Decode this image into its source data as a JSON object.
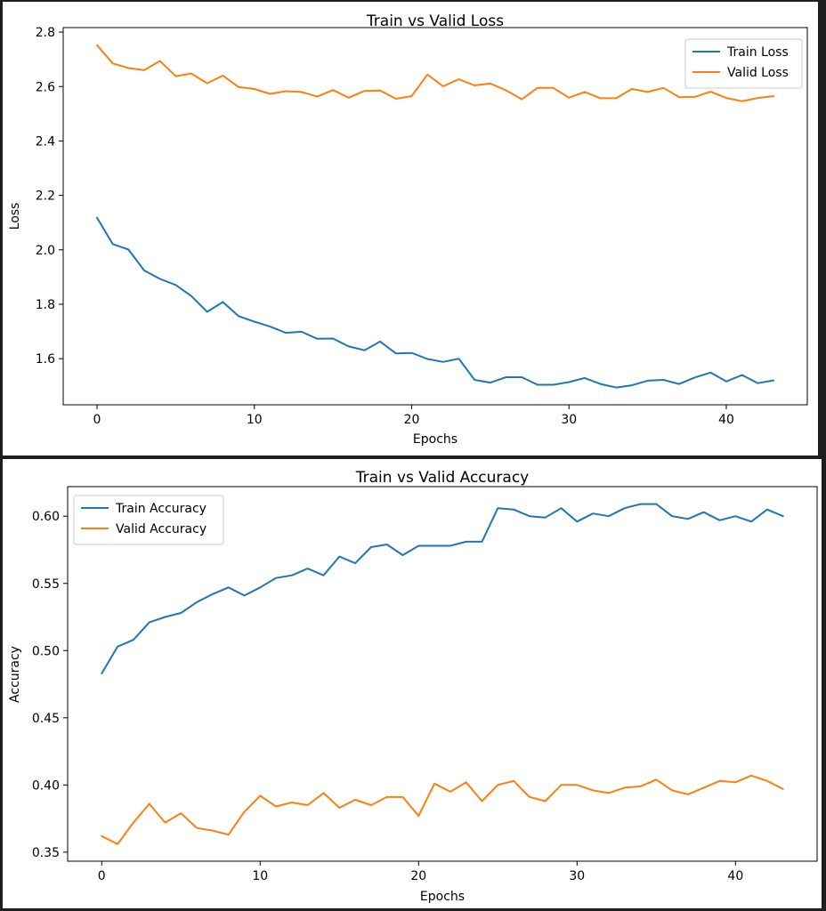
{
  "chart_data": [
    {
      "type": "line",
      "title": "Train vs Valid Loss",
      "xlabel": "Epochs",
      "ylabel": "Loss",
      "xlim": [
        -2.15,
        45.15
      ],
      "ylim": [
        1.4305,
        2.8166
      ],
      "xticks": [
        0,
        10,
        20,
        30,
        40
      ],
      "yticks": [
        1.6,
        1.8,
        2.0,
        2.2,
        2.4,
        2.6,
        2.8
      ],
      "xtick_labels": [
        "0",
        "10",
        "20",
        "30",
        "40"
      ],
      "ytick_labels": [
        "1.6",
        "1.8",
        "2.0",
        "2.2",
        "2.4",
        "2.6",
        "2.8"
      ],
      "grid": false,
      "legend_position": "top-right",
      "x": [
        0,
        1,
        2,
        3,
        4,
        5,
        6,
        7,
        8,
        9,
        10,
        11,
        12,
        13,
        14,
        15,
        16,
        17,
        18,
        19,
        20,
        21,
        22,
        23,
        24,
        25,
        26,
        27,
        28,
        29,
        30,
        31,
        32,
        33,
        34,
        35,
        36,
        37,
        38,
        39,
        40,
        41,
        42,
        43
      ],
      "series": [
        {
          "name": "Train Loss",
          "color": "#1f77b4",
          "values": [
            2.118,
            2.021,
            2.001,
            1.924,
            1.893,
            1.871,
            1.83,
            1.772,
            1.808,
            1.756,
            1.736,
            1.718,
            1.695,
            1.699,
            1.673,
            1.674,
            1.645,
            1.631,
            1.663,
            1.619,
            1.621,
            1.599,
            1.588,
            1.6,
            1.522,
            1.512,
            1.532,
            1.532,
            1.504,
            1.504,
            1.514,
            1.529,
            1.507,
            1.494,
            1.502,
            1.519,
            1.522,
            1.507,
            1.531,
            1.549,
            1.516,
            1.54,
            1.51,
            1.52
          ]
        },
        {
          "name": "Valid Loss",
          "color": "#ff7f0e",
          "values": [
            2.752,
            2.685,
            2.668,
            2.66,
            2.694,
            2.638,
            2.648,
            2.612,
            2.64,
            2.598,
            2.591,
            2.573,
            2.583,
            2.58,
            2.563,
            2.587,
            2.559,
            2.584,
            2.585,
            2.555,
            2.565,
            2.644,
            2.601,
            2.627,
            2.604,
            2.611,
            2.586,
            2.553,
            2.595,
            2.595,
            2.559,
            2.58,
            2.557,
            2.557,
            2.591,
            2.58,
            2.595,
            2.561,
            2.562,
            2.581,
            2.558,
            2.546,
            2.558,
            2.565
          ]
        }
      ]
    },
    {
      "type": "line",
      "title": "Train vs Valid Accuracy",
      "xlabel": "Epochs",
      "ylabel": "Accuracy",
      "xlim": [
        -2.15,
        45.15
      ],
      "ylim": [
        0.3433,
        0.622
      ],
      "xticks": [
        0,
        10,
        20,
        30,
        40
      ],
      "yticks": [
        0.35,
        0.4,
        0.45,
        0.5,
        0.55,
        0.6
      ],
      "xtick_labels": [
        "0",
        "10",
        "20",
        "30",
        "40"
      ],
      "ytick_labels": [
        "0.35",
        "0.40",
        "0.45",
        "0.50",
        "0.55",
        "0.60"
      ],
      "grid": false,
      "legend_position": "top-left",
      "x": [
        0,
        1,
        2,
        3,
        4,
        5,
        6,
        7,
        8,
        9,
        10,
        11,
        12,
        13,
        14,
        15,
        16,
        17,
        18,
        19,
        20,
        21,
        22,
        23,
        24,
        25,
        26,
        27,
        28,
        29,
        30,
        31,
        32,
        33,
        34,
        35,
        36,
        37,
        38,
        39,
        40,
        41,
        42,
        43
      ],
      "series": [
        {
          "name": "Train Accuracy",
          "color": "#1f77b4",
          "values": [
            0.483,
            0.503,
            0.508,
            0.521,
            0.525,
            0.528,
            0.536,
            0.542,
            0.547,
            0.541,
            0.547,
            0.554,
            0.556,
            0.561,
            0.556,
            0.57,
            0.565,
            0.577,
            0.579,
            0.571,
            0.578,
            0.578,
            0.578,
            0.581,
            0.581,
            0.606,
            0.605,
            0.6,
            0.599,
            0.606,
            0.596,
            0.602,
            0.6,
            0.606,
            0.609,
            0.609,
            0.6,
            0.598,
            0.603,
            0.597,
            0.6,
            0.596,
            0.605,
            0.6
          ]
        },
        {
          "name": "Valid Accuracy",
          "color": "#ff7f0e",
          "values": [
            0.362,
            0.356,
            0.372,
            0.386,
            0.372,
            0.379,
            0.368,
            0.366,
            0.363,
            0.38,
            0.392,
            0.384,
            0.387,
            0.385,
            0.394,
            0.383,
            0.389,
            0.385,
            0.391,
            0.391,
            0.377,
            0.401,
            0.395,
            0.402,
            0.388,
            0.4,
            0.403,
            0.391,
            0.388,
            0.4,
            0.4,
            0.396,
            0.394,
            0.398,
            0.399,
            0.404,
            0.396,
            0.393,
            0.398,
            0.403,
            0.402,
            0.407,
            0.403,
            0.397
          ]
        }
      ]
    }
  ]
}
